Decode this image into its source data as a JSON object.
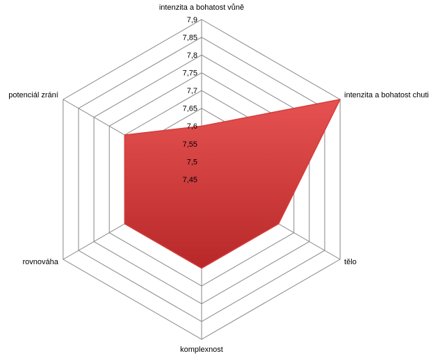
{
  "chart_data": {
    "type": "radar",
    "categories": [
      "intenzita a bohatost vůně",
      "intenzita a bohatost chuti",
      "tělo",
      "komplexnost",
      "rovnováha",
      "potenciál zrání"
    ],
    "series": [
      {
        "values": [
          7.6,
          7.9,
          7.7,
          7.7,
          7.7,
          7.7
        ],
        "color": "#d63c3c"
      }
    ],
    "ylim": [
      7.45,
      7.9
    ],
    "yticks": [
      {
        "value": 7.45,
        "label": "7,45"
      },
      {
        "value": 7.5,
        "label": "7,5"
      },
      {
        "value": 7.55,
        "label": "7,55"
      },
      {
        "value": 7.6,
        "label": "7,6"
      },
      {
        "value": 7.65,
        "label": "7,65"
      },
      {
        "value": 7.7,
        "label": "7,7"
      },
      {
        "value": 7.75,
        "label": "7,75"
      },
      {
        "value": 7.8,
        "label": "7,8"
      },
      {
        "value": 7.85,
        "label": "7,85"
      },
      {
        "value": 7.9,
        "label": "7,9"
      }
    ],
    "grid": true
  }
}
